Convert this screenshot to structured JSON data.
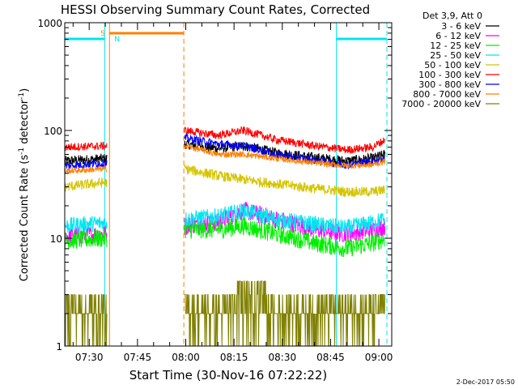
{
  "chart_data": {
    "type": "line",
    "title": "HESSI Observing Summary Count Rates, Corrected",
    "xlabel": "Start Time (30-Nov-16 07:22:22)",
    "ylabel": "Corrected Count Rate (s⁻¹ detector⁻¹)",
    "ylabel_parts": {
      "main": "Corrected Count Rate (s",
      "sup1": "-1",
      "mid": " detector",
      "sup2": "-1",
      "end": ")"
    },
    "x_start_label": "07:22:22",
    "x_range_min": [
      22.4,
      124
    ],
    "y_scale": "log",
    "y_range": [
      1,
      1000
    ],
    "x_ticks": [
      {
        "min": 30,
        "label": "07:30"
      },
      {
        "min": 45,
        "label": "07:45"
      },
      {
        "min": 60,
        "label": "08:00"
      },
      {
        "min": 75,
        "label": "08:15"
      },
      {
        "min": 90,
        "label": "08:30"
      },
      {
        "min": 105,
        "label": "08:45"
      },
      {
        "min": 120,
        "label": "09:00"
      }
    ],
    "y_ticks": [
      {
        "v": 1,
        "label": "1"
      },
      {
        "v": 10,
        "label": "10"
      },
      {
        "v": 100,
        "label": "100"
      },
      {
        "v": 1000,
        "label": "1000"
      }
    ],
    "legend_title": "Det 3,9, Att 0",
    "legend_placement": "right",
    "flag_labels": {
      "saa": "S",
      "night": "N"
    },
    "night_interval": [
      36.3,
      59.4
    ],
    "saa_interval": [
      36.3,
      59.4
    ],
    "vertical_markers": [
      {
        "min": 34.8,
        "color": "#00e5ee",
        "style": "solid"
      },
      {
        "min": 36.3,
        "color": "#ff7f00",
        "style": "solid"
      },
      {
        "min": 59.4,
        "color": "#ff7f00",
        "style": "dashed"
      },
      {
        "min": 106.8,
        "color": "#00e5ee",
        "style": "solid"
      },
      {
        "min": 122.5,
        "color": "#00e5ee",
        "style": "dashed"
      }
    ],
    "intervals": [
      [
        22.4,
        35.5
      ],
      [
        59.6,
        122.0
      ]
    ],
    "series": [
      {
        "name": "3 - 6 keV",
        "color": "#000000",
        "noise": 0.05,
        "points": [
          [
            22.4,
            52
          ],
          [
            35.5,
            55
          ],
          [
            59.6,
            75
          ],
          [
            70,
            68
          ],
          [
            78,
            72
          ],
          [
            88,
            62
          ],
          [
            100,
            56
          ],
          [
            110,
            52
          ],
          [
            118,
            55
          ],
          [
            122,
            60
          ]
        ]
      },
      {
        "name": "6 - 12 keV",
        "color": "#ff00ff",
        "noise": 0.09,
        "points": [
          [
            22.4,
            10.5
          ],
          [
            35.5,
            11
          ],
          [
            59.6,
            13
          ],
          [
            70,
            14
          ],
          [
            78,
            18
          ],
          [
            88,
            15
          ],
          [
            100,
            12
          ],
          [
            110,
            11
          ],
          [
            118,
            12
          ],
          [
            122,
            13
          ]
        ]
      },
      {
        "name": "12 - 25 keV",
        "color": "#00ee00",
        "noise": 0.09,
        "points": [
          [
            22.4,
            9.5
          ],
          [
            35.5,
            10
          ],
          [
            59.6,
            12
          ],
          [
            70,
            12
          ],
          [
            78,
            13
          ],
          [
            88,
            11
          ],
          [
            100,
            9
          ],
          [
            110,
            8
          ],
          [
            118,
            9
          ],
          [
            122,
            10
          ]
        ]
      },
      {
        "name": "25 - 50 keV",
        "color": "#00e5ee",
        "noise": 0.08,
        "points": [
          [
            22.4,
            13
          ],
          [
            35.5,
            14
          ],
          [
            59.6,
            15
          ],
          [
            70,
            16
          ],
          [
            78,
            18
          ],
          [
            88,
            15
          ],
          [
            100,
            13.5
          ],
          [
            110,
            12.5
          ],
          [
            118,
            14
          ],
          [
            122,
            15
          ]
        ]
      },
      {
        "name": "50 - 100 keV",
        "color": "#d4c400",
        "noise": 0.05,
        "points": [
          [
            22.4,
            30
          ],
          [
            35.5,
            33
          ],
          [
            59.6,
            44
          ],
          [
            70,
            38
          ],
          [
            78,
            35
          ],
          [
            88,
            32
          ],
          [
            100,
            29
          ],
          [
            110,
            27
          ],
          [
            118,
            27
          ],
          [
            122,
            28
          ]
        ]
      },
      {
        "name": "100 - 300 keV",
        "color": "#ff0000",
        "noise": 0.04,
        "points": [
          [
            22.4,
            70
          ],
          [
            35.5,
            72
          ],
          [
            59.6,
            100
          ],
          [
            70,
            90
          ],
          [
            78,
            100
          ],
          [
            88,
            82
          ],
          [
            100,
            72
          ],
          [
            110,
            66
          ],
          [
            118,
            70
          ],
          [
            122,
            82
          ]
        ]
      },
      {
        "name": "300 - 800 keV",
        "color": "#0000ff",
        "noise": 0.04,
        "points": [
          [
            22.4,
            47
          ],
          [
            35.5,
            50
          ],
          [
            59.6,
            85
          ],
          [
            70,
            75
          ],
          [
            78,
            72
          ],
          [
            88,
            60
          ],
          [
            100,
            53
          ],
          [
            110,
            48
          ],
          [
            118,
            52
          ],
          [
            122,
            55
          ]
        ]
      },
      {
        "name": "800 - 7000 keV",
        "color": "#ff7f00",
        "noise": 0.03,
        "points": [
          [
            22.4,
            42
          ],
          [
            35.5,
            44
          ],
          [
            59.6,
            72
          ],
          [
            70,
            60
          ],
          [
            78,
            60
          ],
          [
            88,
            55
          ],
          [
            100,
            50
          ],
          [
            110,
            47
          ],
          [
            118,
            48
          ],
          [
            122,
            52
          ]
        ]
      },
      {
        "name": "7000 - 20000 keV",
        "color": "#808000",
        "noise": 0,
        "points": [
          [
            22.4,
            2
          ],
          [
            35.5,
            2
          ],
          [
            59.6,
            2
          ],
          [
            122,
            2
          ]
        ]
      }
    ],
    "footer_date": "2-Dec-2017 05:50"
  }
}
